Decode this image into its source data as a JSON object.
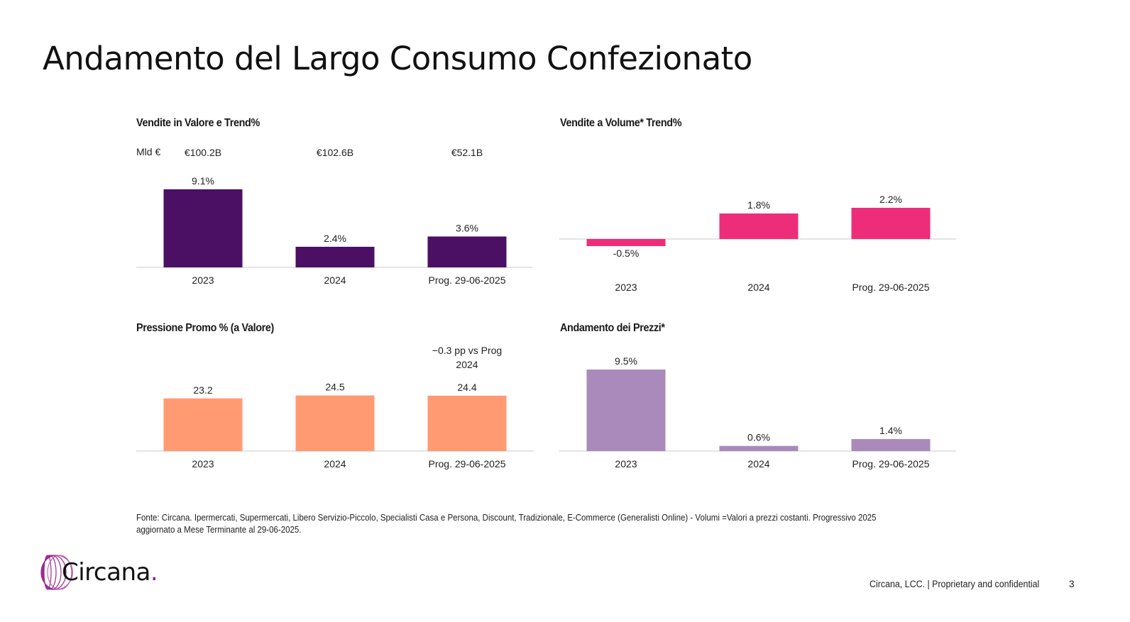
{
  "page": {
    "title": "Andamento del Largo Consumo Confezionato",
    "note": "Fonte: Circana. Ipermercati, Supermercati, Libero Servizio-Piccolo, Specialisti Casa e Persona, Discount, Tradizionale, E-Commerce (Generalisti Online) - Volumi =Valori a prezzi costanti. Progressivo 2025 aggiornato a Mese Terminante al 29-06-2025.",
    "logo_text": "Circana",
    "footer": "Circana, LCC. |  Proprietary and confidential",
    "page_number": "3"
  },
  "chart_data": [
    {
      "type": "bar",
      "title": "Vendite in Valore e Trend%",
      "unit_label": "Mld €",
      "totals": [
        "€100.2B",
        "€102.6B",
        "€52.1B"
      ],
      "categories": [
        "2023",
        "2024",
        "Prog. 29-06-2025"
      ],
      "values": [
        9.1,
        2.4,
        3.6
      ],
      "data_labels": [
        "9.1%",
        "2.4%",
        "3.6%"
      ],
      "color": "#4b0f63",
      "grid": false
    },
    {
      "type": "bar",
      "title": "Vendite a Volume* Trend%",
      "categories": [
        "2023",
        "2024",
        "Prog. 29-06-2025"
      ],
      "values": [
        -0.5,
        1.8,
        2.2
      ],
      "data_labels": [
        "-0.5%",
        "1.8%",
        "2.2%"
      ],
      "color": "#ee2d7a",
      "grid": false
    },
    {
      "type": "bar",
      "title": "Pressione Promo % (a Valore)",
      "categories": [
        "2023",
        "2024",
        "Prog. 29-06-2025"
      ],
      "values": [
        23.2,
        24.5,
        24.4
      ],
      "data_labels": [
        "23.2",
        "24.5",
        "24.4"
      ],
      "annotation": [
        "−0.3 pp vs Prog",
        "2024"
      ],
      "color": "#ff9a72",
      "grid": false
    },
    {
      "type": "bar",
      "title": "Andamento dei Prezzi*",
      "categories": [
        "2023",
        "2024",
        "Prog. 29-06-2025"
      ],
      "values": [
        9.5,
        0.6,
        1.4
      ],
      "data_labels": [
        "9.5%",
        "0.6%",
        "1.4%"
      ],
      "color": "#a98abb",
      "grid": false
    }
  ]
}
